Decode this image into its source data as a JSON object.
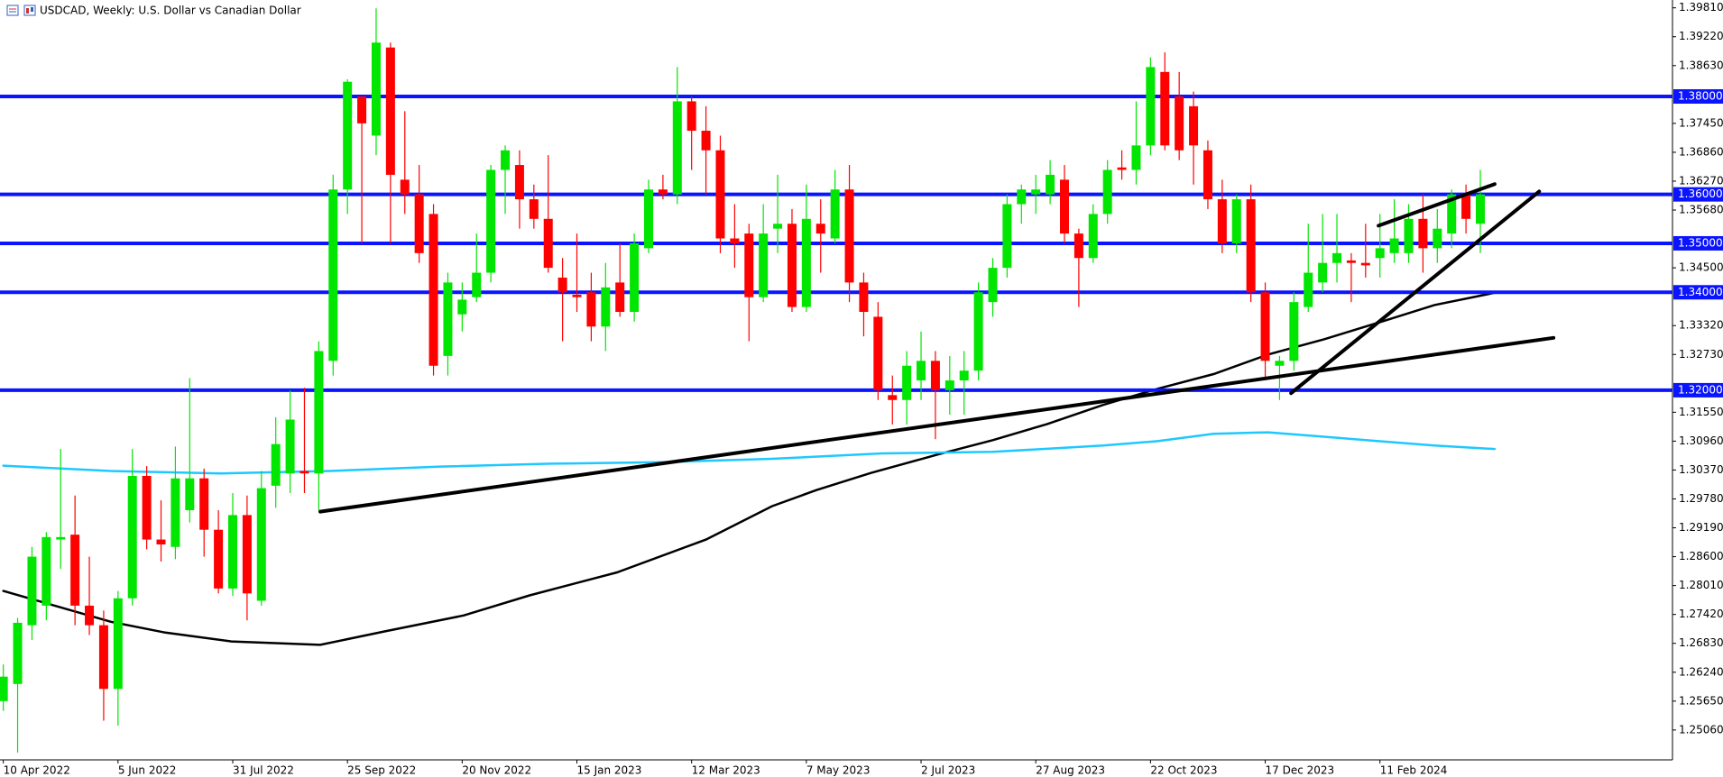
{
  "chart_data": {
    "type": "candlestick",
    "title": "USDCAD, Weekly:  U.S. Dollar vs Canadian Dollar",
    "up_color": "#00e600",
    "down_color": "#ff0000",
    "candles": [
      [
        1.2565,
        1.264,
        1.2545,
        1.2615
      ],
      [
        1.26,
        1.2735,
        1.246,
        1.2725
      ],
      [
        1.272,
        1.288,
        1.269,
        1.286
      ],
      [
        1.276,
        1.291,
        1.273,
        1.29
      ],
      [
        1.2895,
        1.308,
        1.2835,
        1.29
      ],
      [
        1.2905,
        1.2985,
        1.272,
        1.276
      ],
      [
        1.276,
        1.286,
        1.27,
        1.272
      ],
      [
        1.272,
        1.275,
        1.2525,
        1.259
      ],
      [
        1.259,
        1.279,
        1.2515,
        1.2775
      ],
      [
        1.2775,
        1.308,
        1.276,
        1.3025
      ],
      [
        1.3025,
        1.3045,
        1.2875,
        1.2895
      ],
      [
        1.2895,
        1.2975,
        1.285,
        1.2885
      ],
      [
        1.288,
        1.3085,
        1.2855,
        1.302
      ],
      [
        1.2955,
        1.3225,
        1.293,
        1.302
      ],
      [
        1.302,
        1.304,
        1.286,
        1.2915
      ],
      [
        1.2915,
        1.2955,
        1.2785,
        1.2795
      ],
      [
        1.2795,
        1.299,
        1.278,
        1.2945
      ],
      [
        1.2945,
        1.2985,
        1.273,
        1.2785
      ],
      [
        1.277,
        1.3035,
        1.276,
        1.3
      ],
      [
        1.3005,
        1.3145,
        1.296,
        1.309
      ],
      [
        1.303,
        1.32,
        1.299,
        1.314
      ],
      [
        1.3035,
        1.3205,
        1.299,
        1.303
      ],
      [
        1.303,
        1.33,
        1.2955,
        1.328
      ],
      [
        1.326,
        1.364,
        1.323,
        1.361
      ],
      [
        1.361,
        1.3835,
        1.356,
        1.383
      ],
      [
        1.38,
        1.38,
        1.35,
        1.3745
      ],
      [
        1.372,
        1.398,
        1.368,
        1.391
      ],
      [
        1.39,
        1.391,
        1.35,
        1.364
      ],
      [
        1.363,
        1.377,
        1.356,
        1.36
      ],
      [
        1.36,
        1.366,
        1.346,
        1.348
      ],
      [
        1.356,
        1.358,
        1.323,
        1.325
      ],
      [
        1.327,
        1.344,
        1.323,
        1.342
      ],
      [
        1.3355,
        1.342,
        1.332,
        1.3385
      ],
      [
        1.339,
        1.352,
        1.338,
        1.344
      ],
      [
        1.344,
        1.366,
        1.342,
        1.365
      ],
      [
        1.365,
        1.37,
        1.356,
        1.369
      ],
      [
        1.366,
        1.369,
        1.353,
        1.359
      ],
      [
        1.359,
        1.362,
        1.353,
        1.355
      ],
      [
        1.355,
        1.368,
        1.344,
        1.345
      ],
      [
        1.343,
        1.347,
        1.33,
        1.34
      ],
      [
        1.3395,
        1.352,
        1.336,
        1.339
      ],
      [
        1.34,
        1.344,
        1.33,
        1.333
      ],
      [
        1.333,
        1.346,
        1.328,
        1.341
      ],
      [
        1.342,
        1.35,
        1.335,
        1.336
      ],
      [
        1.336,
        1.352,
        1.334,
        1.35
      ],
      [
        1.349,
        1.363,
        1.348,
        1.361
      ],
      [
        1.361,
        1.364,
        1.359,
        1.36
      ],
      [
        1.36,
        1.386,
        1.358,
        1.379
      ],
      [
        1.379,
        1.38,
        1.365,
        1.373
      ],
      [
        1.373,
        1.378,
        1.36,
        1.369
      ],
      [
        1.369,
        1.372,
        1.348,
        1.351
      ],
      [
        1.351,
        1.358,
        1.345,
        1.35
      ],
      [
        1.352,
        1.354,
        1.33,
        1.339
      ],
      [
        1.339,
        1.358,
        1.338,
        1.352
      ],
      [
        1.353,
        1.364,
        1.348,
        1.354
      ],
      [
        1.354,
        1.357,
        1.336,
        1.337
      ],
      [
        1.337,
        1.362,
        1.336,
        1.355
      ],
      [
        1.354,
        1.359,
        1.344,
        1.352
      ],
      [
        1.351,
        1.365,
        1.35,
        1.361
      ],
      [
        1.361,
        1.366,
        1.338,
        1.342
      ],
      [
        1.342,
        1.344,
        1.331,
        1.336
      ],
      [
        1.335,
        1.338,
        1.318,
        1.32
      ],
      [
        1.319,
        1.323,
        1.313,
        1.318
      ],
      [
        1.318,
        1.328,
        1.313,
        1.325
      ],
      [
        1.322,
        1.332,
        1.318,
        1.326
      ],
      [
        1.326,
        1.328,
        1.31,
        1.32
      ],
      [
        1.32,
        1.327,
        1.315,
        1.322
      ],
      [
        1.322,
        1.328,
        1.315,
        1.324
      ],
      [
        1.324,
        1.342,
        1.322,
        1.34
      ],
      [
        1.338,
        1.347,
        1.335,
        1.345
      ],
      [
        1.345,
        1.36,
        1.343,
        1.358
      ],
      [
        1.358,
        1.362,
        1.354,
        1.361
      ],
      [
        1.36,
        1.364,
        1.356,
        1.361
      ],
      [
        1.36,
        1.367,
        1.358,
        1.364
      ],
      [
        1.363,
        1.366,
        1.35,
        1.352
      ],
      [
        1.352,
        1.353,
        1.337,
        1.347
      ],
      [
        1.347,
        1.358,
        1.346,
        1.356
      ],
      [
        1.356,
        1.367,
        1.354,
        1.365
      ],
      [
        1.3655,
        1.369,
        1.363,
        1.365
      ],
      [
        1.365,
        1.379,
        1.362,
        1.37
      ],
      [
        1.37,
        1.388,
        1.368,
        1.386
      ],
      [
        1.385,
        1.389,
        1.369,
        1.37
      ],
      [
        1.38,
        1.385,
        1.367,
        1.369
      ],
      [
        1.378,
        1.381,
        1.362,
        1.37
      ],
      [
        1.369,
        1.371,
        1.357,
        1.359
      ],
      [
        1.359,
        1.363,
        1.348,
        1.35
      ],
      [
        1.35,
        1.36,
        1.348,
        1.359
      ],
      [
        1.359,
        1.362,
        1.338,
        1.34
      ],
      [
        1.34,
        1.342,
        1.322,
        1.326
      ],
      [
        1.325,
        1.327,
        1.318,
        1.326
      ],
      [
        1.326,
        1.34,
        1.324,
        1.338
      ],
      [
        1.337,
        1.354,
        1.336,
        1.344
      ],
      [
        1.342,
        1.356,
        1.34,
        1.346
      ],
      [
        1.346,
        1.356,
        1.342,
        1.348
      ],
      [
        1.3465,
        1.348,
        1.338,
        1.346
      ],
      [
        1.346,
        1.354,
        1.343,
        1.3455
      ],
      [
        1.347,
        1.356,
        1.343,
        1.349
      ],
      [
        1.348,
        1.359,
        1.346,
        1.351
      ],
      [
        1.348,
        1.358,
        1.346,
        1.355
      ],
      [
        1.355,
        1.36,
        1.344,
        1.349
      ],
      [
        1.349,
        1.357,
        1.346,
        1.353
      ],
      [
        1.352,
        1.361,
        1.349,
        1.36
      ],
      [
        1.36,
        1.362,
        1.352,
        1.355
      ],
      [
        1.354,
        1.365,
        1.348,
        1.36
      ]
    ],
    "lines": [
      {
        "color": "#000000",
        "x": [
          0,
          7.5,
          11.3,
          15.9,
          22.1,
          26.7,
          32.1,
          36.7,
          42.8,
          49,
          53.6,
          56.7,
          60.5,
          65.2,
          69,
          72.8,
          76.7,
          80.5,
          84.4,
          88.2,
          92.1,
          95.9,
          99.8,
          104
        ],
        "values": [
          1.279,
          1.2727,
          1.2705,
          1.2687,
          1.268,
          1.2708,
          1.274,
          1.2781,
          1.2828,
          1.2895,
          1.2963,
          1.2996,
          1.3031,
          1.3069,
          1.3098,
          1.3131,
          1.317,
          1.3203,
          1.3233,
          1.3273,
          1.3304,
          1.3338,
          1.3374,
          1.3399
        ]
      },
      {
        "color": "#1ec8ff",
        "x": [
          0,
          7.5,
          15.2,
          22.8,
          30.5,
          38.2,
          45.9,
          53.6,
          61.3,
          69,
          76.7,
          80.5,
          84.4,
          88.2,
          92.1,
          95.9,
          99.8,
          104
        ],
        "values": [
          1.3046,
          1.3035,
          1.303,
          1.3035,
          1.3044,
          1.305,
          1.3053,
          1.306,
          1.3071,
          1.3074,
          1.3087,
          1.3096,
          1.3111,
          1.3114,
          1.3105,
          1.3096,
          1.3087,
          1.308
        ]
      }
    ],
    "trendlines": [
      {
        "color": "#000000",
        "x": [
          22.1,
          108.1
        ],
        "values": [
          1.2952,
          1.3307
        ]
      },
      {
        "color": "#000000",
        "x": [
          89.8,
          107.1
        ],
        "values": [
          1.3194,
          1.3606
        ]
      },
      {
        "color": "#000000",
        "x": [
          95.9,
          104
        ],
        "values": [
          1.3536,
          1.3621
        ]
      }
    ],
    "levels": [
      {
        "value": 1.38,
        "label": "1.38000"
      },
      {
        "value": 1.36,
        "label": "1.36000"
      },
      {
        "value": 1.35,
        "label": "1.35000"
      },
      {
        "value": 1.34,
        "label": "1.34000"
      },
      {
        "value": 1.32,
        "label": "1.32000"
      }
    ],
    "level_color": "#0a14ff",
    "ylim": [
      1.2445,
      1.3997
    ],
    "xlim": [
      -0.23,
      116.4
    ],
    "yticks": [
      {
        "value": 1.3981,
        "label": "1.39810"
      },
      {
        "value": 1.3922,
        "label": "1.39220"
      },
      {
        "value": 1.3863,
        "label": "1.38630"
      },
      {
        "value": 1.3745,
        "label": "1.37450"
      },
      {
        "value": 1.3686,
        "label": "1.36860"
      },
      {
        "value": 1.3627,
        "label": "1.36270"
      },
      {
        "value": 1.3568,
        "label": "1.35680"
      },
      {
        "value": 1.345,
        "label": "1.34500"
      },
      {
        "value": 1.3332,
        "label": "1.33320"
      },
      {
        "value": 1.3273,
        "label": "1.32730"
      },
      {
        "value": 1.3155,
        "label": "1.31550"
      },
      {
        "value": 1.3096,
        "label": "1.30960"
      },
      {
        "value": 1.3037,
        "label": "1.30370"
      },
      {
        "value": 1.2978,
        "label": "1.29780"
      },
      {
        "value": 1.2919,
        "label": "1.29190"
      },
      {
        "value": 1.286,
        "label": "1.28600"
      },
      {
        "value": 1.2801,
        "label": "1.28010"
      },
      {
        "value": 1.2742,
        "label": "1.27420"
      },
      {
        "value": 1.2683,
        "label": "1.26830"
      },
      {
        "value": 1.2624,
        "label": "1.26240"
      },
      {
        "value": 1.2565,
        "label": "1.25650"
      },
      {
        "value": 1.2506,
        "label": "1.25060"
      }
    ],
    "xticks": [
      {
        "value": 0,
        "label": "10 Apr 2022"
      },
      {
        "value": 8,
        "label": "5 Jun 2022"
      },
      {
        "value": 16,
        "label": "31 Jul 2022"
      },
      {
        "value": 24,
        "label": "25 Sep 2022"
      },
      {
        "value": 32,
        "label": "20 Nov 2022"
      },
      {
        "value": 40,
        "label": "15 Jan 2023"
      },
      {
        "value": 48,
        "label": "12 Mar 2023"
      },
      {
        "value": 56,
        "label": "7 May 2023"
      },
      {
        "value": 64,
        "label": "2 Jul 2023"
      },
      {
        "value": 72,
        "label": "27 Aug 2023"
      },
      {
        "value": 80,
        "label": "22 Oct 2023"
      },
      {
        "value": 88,
        "label": "17 Dec 2023"
      },
      {
        "value": 96,
        "label": "11 Feb 2024"
      }
    ]
  }
}
